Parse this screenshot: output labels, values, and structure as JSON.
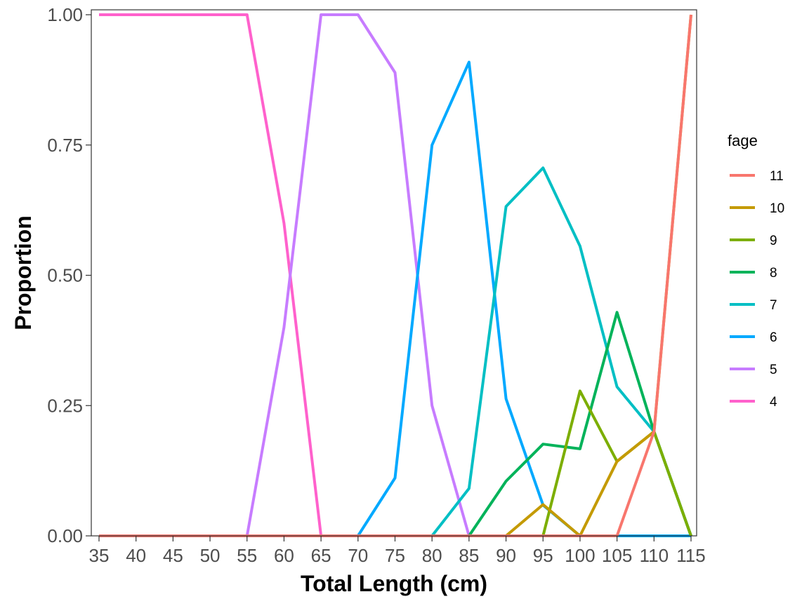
{
  "chart_data": {
    "type": "line",
    "title": "",
    "xlabel": "Total Length (cm)",
    "ylabel": "Proportion",
    "x": [
      35,
      40,
      45,
      50,
      55,
      60,
      65,
      70,
      75,
      80,
      85,
      90,
      95,
      100,
      105,
      110,
      115
    ],
    "x_tick_labels": [
      "35",
      "40",
      "45",
      "50",
      "55",
      "60",
      "65",
      "70",
      "75",
      "80",
      "85",
      "90",
      "95",
      "100",
      "105",
      "110",
      "115"
    ],
    "xlim": [
      35,
      115
    ],
    "ylim": [
      0,
      1
    ],
    "y_ticks": [
      0,
      0.25,
      0.5,
      0.75,
      1
    ],
    "y_tick_labels": [
      "0.00",
      "0.25",
      "0.50",
      "0.75",
      "1.00"
    ],
    "grid": false,
    "legend": {
      "title": "fage",
      "placement": "right"
    },
    "series": [
      {
        "name": "11",
        "color": "#F8766D",
        "values": [
          0,
          0,
          0,
          0,
          0,
          0,
          0,
          0,
          0,
          0,
          0,
          0,
          0,
          0,
          0,
          0.2,
          1
        ]
      },
      {
        "name": "10",
        "color": "#C49A00",
        "values": [
          0,
          0,
          0,
          0,
          0,
          0,
          0,
          0,
          0,
          0,
          0,
          0,
          0.06,
          0,
          0.143,
          0.2,
          1
        ]
      },
      {
        "name": "9",
        "color": "#7CAE00",
        "values": [
          0,
          0,
          0,
          0,
          0,
          0,
          0,
          0,
          0,
          0,
          0,
          0,
          0,
          0.278,
          0.143,
          0.2,
          0
        ]
      },
      {
        "name": "8",
        "color": "#00B35A",
        "values": [
          0,
          0,
          0,
          0,
          0,
          0,
          0,
          0,
          0,
          0,
          0,
          0.105,
          0.176,
          0.167,
          0.429,
          0.2,
          0
        ]
      },
      {
        "name": "7",
        "color": "#00BFC4",
        "values": [
          0,
          0,
          0,
          0,
          0,
          0,
          0,
          0,
          0,
          0,
          0.091,
          0.632,
          0.706,
          0.556,
          0.286,
          0.2,
          0
        ]
      },
      {
        "name": "6",
        "color": "#00A9FF",
        "values": [
          0,
          0,
          0,
          0,
          0,
          0,
          0,
          0,
          0.111,
          0.75,
          0.909,
          0.263,
          0.059,
          0,
          0,
          0,
          0
        ]
      },
      {
        "name": "5",
        "color": "#C77CFF",
        "values": [
          0,
          0,
          0,
          0,
          0,
          0.4,
          1,
          1,
          0.889,
          0.25,
          0,
          0,
          0,
          0,
          0,
          0,
          0
        ]
      },
      {
        "name": "4",
        "color": "#FF61CC",
        "values": [
          1,
          1,
          1,
          1,
          1,
          0.6,
          0,
          0,
          0,
          0,
          0,
          0,
          0,
          0,
          0,
          0,
          0
        ]
      }
    ]
  }
}
